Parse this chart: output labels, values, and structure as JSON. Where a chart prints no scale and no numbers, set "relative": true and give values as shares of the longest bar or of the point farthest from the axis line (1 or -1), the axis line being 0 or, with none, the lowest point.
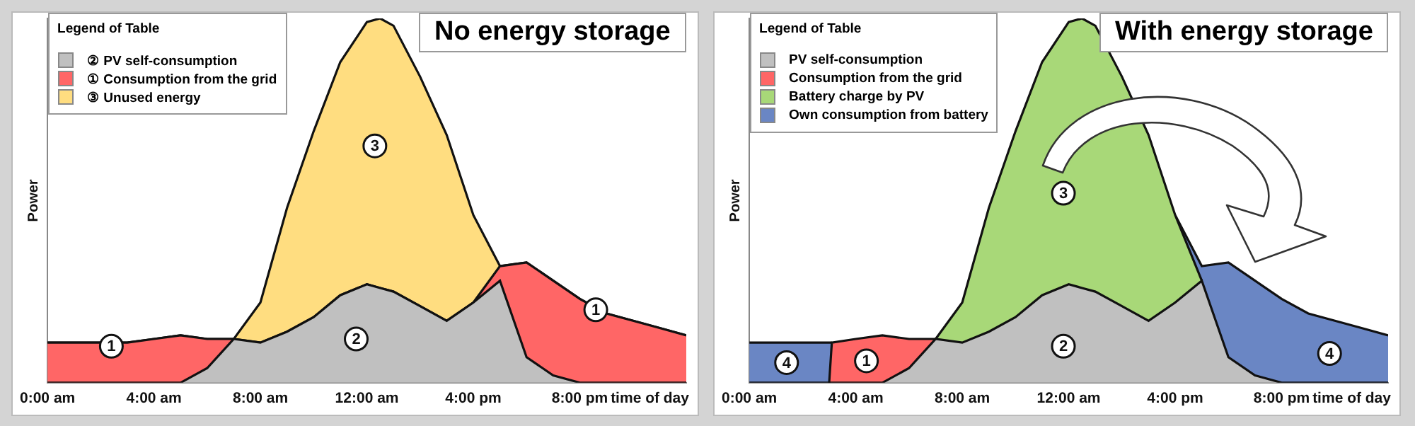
{
  "chart_data": [
    {
      "type": "area",
      "title": "No energy storage",
      "xlabel": "time of day",
      "ylabel": "Power",
      "legend_title": "Legend of Table",
      "legend": "top left",
      "relative": true,
      "stacked": true,
      "x": [
        0,
        1,
        2,
        3,
        4,
        5,
        6,
        7,
        8,
        9,
        10,
        11,
        12,
        12.5,
        13,
        14,
        15,
        16,
        17,
        18,
        19,
        20,
        21,
        22,
        23,
        24
      ],
      "xlim": [
        0,
        24
      ],
      "xticks": [
        {
          "value": 0,
          "label": "0:00 am"
        },
        {
          "value": 4,
          "label": "4:00 am"
        },
        {
          "value": 8,
          "label": "8:00 am"
        },
        {
          "value": 12,
          "label": "12:00 am"
        },
        {
          "value": 16,
          "label": "4:00 pm"
        },
        {
          "value": 20,
          "label": "8:00 pm"
        }
      ],
      "series": [
        {
          "name": "② PV self-consumption",
          "color": "#c0c0c0",
          "values": [
            0,
            0,
            0,
            0,
            0,
            0,
            0.04,
            0.12,
            0.11,
            0.14,
            0.18,
            0.24,
            0.27,
            0.26,
            0.25,
            0.21,
            0.17,
            0.22,
            0.28,
            0.07,
            0.02,
            0,
            0,
            0,
            0,
            0
          ]
        },
        {
          "name": "① Consumption from the grid",
          "color": "#ff6666",
          "values": [
            0.11,
            0.11,
            0.11,
            0.11,
            0.12,
            0.13,
            0.08,
            0,
            0,
            0,
            0,
            0,
            0,
            0,
            0,
            0,
            0,
            0,
            0.04,
            0.26,
            0.26,
            0.23,
            0.19,
            0.17,
            0.15,
            0.13
          ]
        },
        {
          "name": "③ Unused energy",
          "color": "#ffdd80",
          "values": [
            0,
            0,
            0,
            0,
            0,
            0,
            0,
            0,
            0.11,
            0.34,
            0.51,
            0.64,
            0.72,
            0.74,
            0.73,
            0.63,
            0.51,
            0.24,
            0,
            0,
            0,
            0,
            0,
            0,
            0,
            0
          ]
        }
      ],
      "annotations": [
        {
          "text": "3",
          "x": 12.3,
          "y": 0.65
        },
        {
          "text": "2",
          "x": 11.6,
          "y": 0.12
        },
        {
          "text": "1",
          "x": 2.4,
          "y": 0.1
        },
        {
          "text": "1",
          "x": 20.6,
          "y": 0.2
        }
      ]
    },
    {
      "type": "area",
      "title": "With energy storage",
      "xlabel": "time of day",
      "ylabel": "Power",
      "legend_title": "Legend of Table",
      "legend": "top left",
      "relative": true,
      "stacked": true,
      "x": [
        0,
        1,
        2,
        3,
        3.1,
        4,
        5,
        6,
        7,
        8,
        9,
        10,
        11,
        12,
        12.5,
        13,
        14,
        15,
        16,
        17,
        18,
        19,
        20,
        21,
        22,
        23,
        24
      ],
      "xlim": [
        0,
        24
      ],
      "xticks": [
        {
          "value": 0,
          "label": "0:00 am"
        },
        {
          "value": 4,
          "label": "4:00 am"
        },
        {
          "value": 8,
          "label": "8:00 am"
        },
        {
          "value": 12,
          "label": "12:00 am"
        },
        {
          "value": 16,
          "label": "4:00 pm"
        },
        {
          "value": 20,
          "label": "8:00 pm"
        }
      ],
      "series": [
        {
          "name": "PV self-consumption",
          "color": "#c0c0c0",
          "values": [
            0,
            0,
            0,
            0,
            0,
            0,
            0,
            0.04,
            0.12,
            0.11,
            0.14,
            0.18,
            0.24,
            0.27,
            0.26,
            0.25,
            0.21,
            0.17,
            0.22,
            0.28,
            0.07,
            0.02,
            0,
            0,
            0,
            0,
            0
          ]
        },
        {
          "name": "Consumption from the grid",
          "color": "#ff6666",
          "values": [
            null,
            null,
            null,
            0,
            0.11,
            0.12,
            0.13,
            0.08,
            0,
            null,
            null,
            null,
            null,
            null,
            null,
            null,
            null,
            null,
            null,
            null,
            null,
            null,
            null,
            null,
            null,
            null,
            null
          ]
        },
        {
          "name": "Battery charge by PV",
          "color": "#a8d878",
          "values": [
            null,
            null,
            null,
            null,
            null,
            null,
            null,
            null,
            0,
            0.11,
            0.34,
            0.51,
            0.64,
            0.72,
            0.74,
            0.73,
            0.63,
            0.51,
            0.24,
            0,
            null,
            null,
            null,
            null,
            null,
            null,
            null
          ]
        },
        {
          "name": "Own consumption from battery",
          "color": "#6a86c4",
          "values": [
            0.11,
            0.11,
            0.11,
            0.11,
            0,
            null,
            null,
            null,
            null,
            null,
            null,
            null,
            null,
            null,
            null,
            null,
            null,
            null,
            0,
            0.04,
            0.26,
            0.26,
            0.23,
            0.19,
            0.17,
            0.15,
            0.13
          ]
        }
      ],
      "annotations": [
        {
          "text": "3",
          "x": 11.8,
          "y": 0.52
        },
        {
          "text": "2",
          "x": 11.8,
          "y": 0.1
        },
        {
          "text": "1",
          "x": 4.4,
          "y": 0.06
        },
        {
          "text": "4",
          "x": 1.4,
          "y": 0.055
        },
        {
          "text": "4",
          "x": 21.8,
          "y": 0.08
        }
      ]
    }
  ]
}
